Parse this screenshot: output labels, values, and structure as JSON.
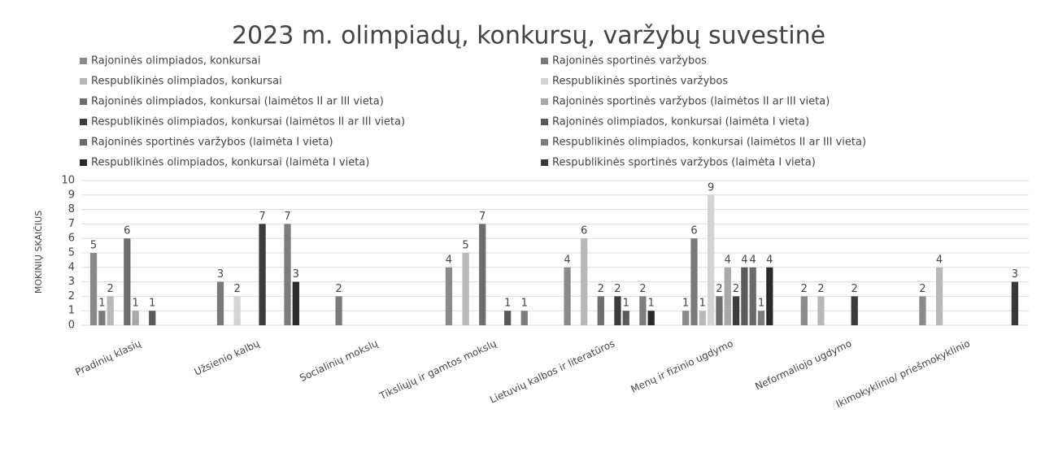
{
  "chart_data": {
    "type": "bar",
    "title": "2023 m. olimpiadų, konkursų, varžybų suvestinė",
    "y_label": "MOKINIŲ SKAIČIUS",
    "categories": [
      "Pradinių klasių",
      "Užsienio kalbų",
      "Socialinių mokslų",
      "Tiksliųjų ir gamtos mokslų",
      "Lietuvių kalbos ir literatūros",
      "Menų ir fizinio ugdymo",
      "Neformaliojo ugdymo",
      "Ikimokyklinio/ priešmokyklinio"
    ],
    "ylim": [
      0,
      10
    ],
    "yticks": [
      0,
      1,
      2,
      3,
      4,
      5,
      6,
      7,
      8,
      9,
      10
    ],
    "grid": true,
    "series": [
      {
        "name": "Rajoninės olimpiados,  konkursai",
        "color": "#8a8a8a",
        "values": [
          5,
          null,
          null,
          4,
          4,
          1,
          2,
          2
        ]
      },
      {
        "name": "Rajoninės sportinės varžybos",
        "color": "#7a7a7a",
        "values": [
          1,
          3,
          2,
          null,
          null,
          6,
          null,
          null
        ]
      },
      {
        "name": "Respublikinės olimpiados, konkursai",
        "color": "#b8b8b8",
        "values": [
          2,
          null,
          null,
          5,
          6,
          1,
          2,
          4
        ]
      },
      {
        "name": "Respublikinės sportinės varžybos",
        "color": "#d4d4d4",
        "values": [
          null,
          2,
          null,
          null,
          null,
          9,
          null,
          null
        ]
      },
      {
        "name": "Rajoninės olimpiados, konkursai (laimėtos II ar III vieta)",
        "color": "#6e6e6e",
        "values": [
          6,
          null,
          null,
          7,
          2,
          2,
          null,
          null
        ]
      },
      {
        "name": "Rajoninės sportinės varžybos (laimėtos II ar III vieta)",
        "color": "#a8a8a8",
        "values": [
          1,
          null,
          null,
          null,
          null,
          4,
          null,
          null
        ]
      },
      {
        "name": "Respublikinės olimpiados, konkursai (laimėtos II ar III vieta)",
        "color": "#3c3c3c",
        "values": [
          null,
          7,
          null,
          null,
          2,
          2,
          2,
          null
        ]
      },
      {
        "name": "Rajoninės olimpiados,  konkursai (laimėta I vieta)",
        "color": "#5a5a5a",
        "values": [
          1,
          null,
          null,
          1,
          1,
          4,
          null,
          null
        ]
      },
      {
        "name": "Rajoninės sportinės varžybos (laimėta I vieta)",
        "color": "#6a6a6a",
        "values": [
          null,
          null,
          null,
          null,
          null,
          4,
          null,
          null
        ]
      },
      {
        "name": "Respublikinės olimpiados, konkursai (laimėtos II ar III vieta)",
        "color": "#7c7c7c",
        "values": [
          null,
          7,
          null,
          1,
          2,
          1,
          null,
          null
        ]
      },
      {
        "name": "Respublikinės olimpiados, konkursai (laimėta I vieta)",
        "color": "#2a2a2a",
        "values": [
          null,
          3,
          null,
          null,
          1,
          4,
          null,
          null
        ]
      },
      {
        "name": "Respublikinės sportinės varžybos (laimėta I vieta)",
        "color": "#383838",
        "values": [
          null,
          null,
          null,
          null,
          null,
          null,
          null,
          3
        ]
      }
    ]
  }
}
